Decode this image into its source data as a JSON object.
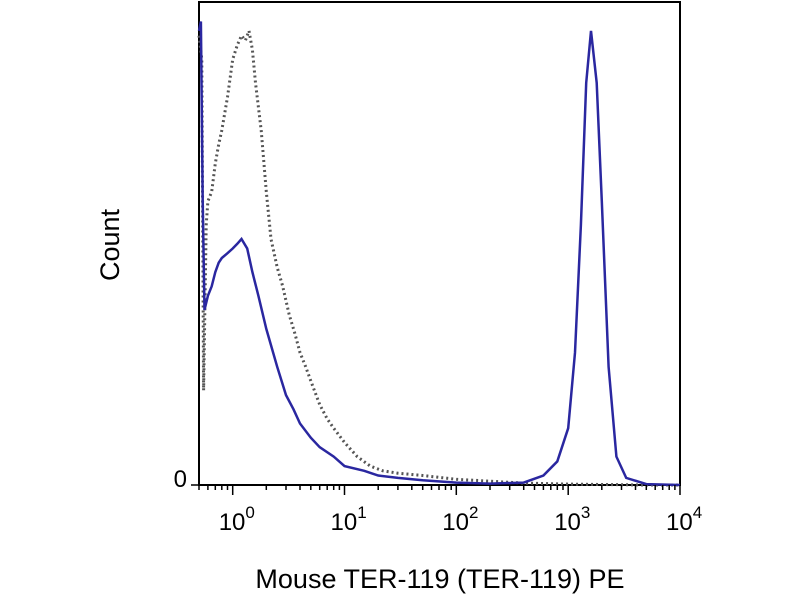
{
  "chart_data": {
    "type": "line",
    "xlabel": "Mouse TER-119 (TER-119) PE",
    "ylabel": "Count",
    "x_scale": "log",
    "xlim": [
      0.5,
      10000
    ],
    "ylim": [
      0,
      100
    ],
    "y_tick_labels": [
      {
        "value": 0,
        "label": "0"
      }
    ],
    "x_tick_labels": [
      {
        "value": 1,
        "base": "10",
        "exp": "0"
      },
      {
        "value": 10,
        "base": "10",
        "exp": "1"
      },
      {
        "value": 100,
        "base": "10",
        "exp": "2"
      },
      {
        "value": 1000,
        "base": "10",
        "exp": "3"
      },
      {
        "value": 10000,
        "base": "10",
        "exp": "4"
      }
    ],
    "grid": false,
    "series": [
      {
        "style": "dotted",
        "color": "#555555",
        "x": [
          0.5,
          0.53,
          0.55,
          0.58,
          0.6,
          0.65,
          0.7,
          0.75,
          0.8,
          0.9,
          1.0,
          1.1,
          1.2,
          1.3,
          1.4,
          1.5,
          1.6,
          1.8,
          2.0,
          2.2,
          2.5,
          2.8,
          3.2,
          3.6,
          4.0,
          4.5,
          5.0,
          6.0,
          7.0,
          8.0,
          10,
          13,
          17,
          22,
          30,
          50,
          100,
          200,
          400,
          1000,
          2000,
          5000,
          10000
        ],
        "y": [
          95,
          90,
          20,
          55,
          60,
          62,
          68,
          72,
          75,
          82,
          90,
          93,
          95,
          94,
          96,
          92,
          85,
          75,
          62,
          52,
          46,
          42,
          36,
          32,
          28,
          25,
          22,
          17,
          14,
          12,
          9,
          6,
          4,
          3,
          2.5,
          2,
          1.2,
          0.8,
          0.4,
          0.2,
          0.1,
          0,
          0
        ]
      },
      {
        "style": "solid",
        "color": "#2a27a0",
        "x": [
          0.5,
          0.52,
          0.54,
          0.56,
          0.6,
          0.65,
          0.7,
          0.75,
          0.8,
          0.9,
          1.0,
          1.1,
          1.2,
          1.35,
          1.5,
          1.7,
          2.0,
          2.5,
          3.0,
          3.5,
          4.0,
          5.0,
          6.0,
          8.0,
          10,
          15,
          20,
          30,
          50,
          100,
          200,
          400,
          600,
          800,
          1000,
          1150,
          1300,
          1450,
          1600,
          1800,
          2000,
          2300,
          2700,
          3300,
          5000,
          10000
        ],
        "y": [
          96,
          98,
          60,
          37,
          40,
          42,
          45,
          47,
          48,
          49,
          50,
          51,
          52,
          50,
          45,
          40,
          33,
          25,
          19,
          16,
          13,
          10,
          8,
          6,
          4,
          3,
          2,
          1.5,
          1,
          0.5,
          0.3,
          0.5,
          2,
          5,
          12,
          28,
          55,
          85,
          96,
          85,
          60,
          25,
          6,
          1.5,
          0.2,
          0
        ]
      }
    ]
  }
}
